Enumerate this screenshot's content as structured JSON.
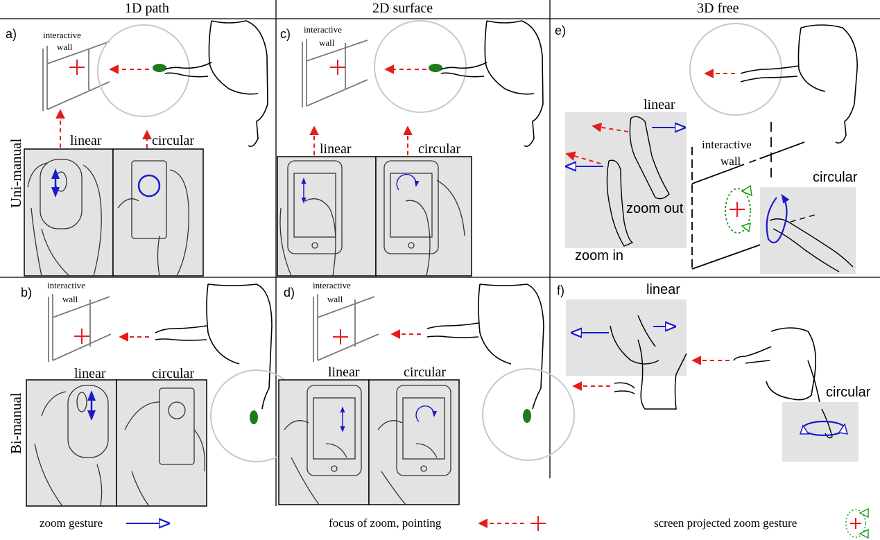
{
  "columns": {
    "path_1d": "1D path",
    "surface_2d": "2D surface",
    "free_3d": "3D free"
  },
  "rows": {
    "uni_manual": "Uni-manual",
    "bi_manual": "Bi-manual"
  },
  "panels": {
    "a": {
      "letter": "a)",
      "wall_label_1": "interactive",
      "wall_label_2": "wall",
      "linear": "linear",
      "circular": "circular"
    },
    "b": {
      "letter": "b)",
      "wall_label_1": "interactive",
      "wall_label_2": "wall",
      "linear": "linear",
      "circular": "circular"
    },
    "c": {
      "letter": "c)",
      "wall_label_1": "interactive",
      "wall_label_2": "wall",
      "linear": "linear",
      "circular": "circular"
    },
    "d": {
      "letter": "d)",
      "wall_label_1": "interactive",
      "wall_label_2": "wall",
      "linear": "linear",
      "circular": "circular"
    },
    "e": {
      "letter": "e)",
      "linear": "linear",
      "wall_label_1": "interactive",
      "wall_label_2": "wall",
      "circular": "circular",
      "zoom_out": "zoom out",
      "zoom_in": "zoom in"
    },
    "f": {
      "letter": "f)",
      "linear": "linear",
      "circular": "circular"
    }
  },
  "legend": {
    "zoom_gesture": "zoom gesture",
    "focus_of_zoom": "focus of zoom, pointing",
    "screen_projected": "screen projected zoom gesture"
  },
  "colors": {
    "gesture_blue": "#1a1acd",
    "pointing_red": "#e51c1c",
    "projected_green": "#1a9a1a",
    "panel_gray": "#e3e3e3",
    "circle_gray": "#c8c8c8",
    "wall_gray": "#7a7a7a"
  }
}
